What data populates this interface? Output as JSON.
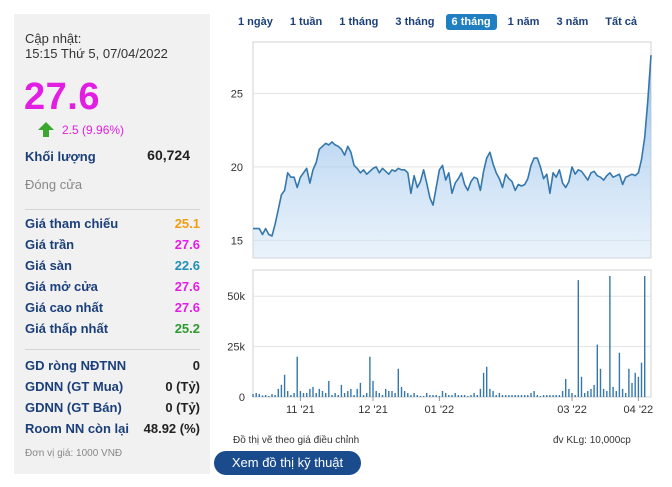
{
  "update": {
    "label": "Cập nhật:",
    "time": "15:15 Thứ 5, 07/04/2022"
  },
  "price": "27.6",
  "change": {
    "text": "2.5 (9.96%)",
    "direction": "up"
  },
  "volume": {
    "label": "Khối lượng",
    "value": "60,724"
  },
  "close_label": "Đóng cửa",
  "prices": [
    {
      "label": "Giá tham chiếu",
      "value": "25.1",
      "color": "#f39c12"
    },
    {
      "label": "Giá trần",
      "value": "27.6",
      "color": "#e31ee3"
    },
    {
      "label": "Giá sàn",
      "value": "22.6",
      "color": "#1f8fb5"
    },
    {
      "label": "Giá mở cửa",
      "value": "27.6",
      "color": "#e31ee3"
    },
    {
      "label": "Giá cao nhất",
      "value": "27.6",
      "color": "#e31ee3"
    },
    {
      "label": "Giá thấp nhất",
      "value": "25.2",
      "color": "#2e9a2e"
    }
  ],
  "foreign": [
    {
      "label": "GD ròng NĐTNN",
      "value": "0"
    },
    {
      "label": "GDNN (GT Mua)",
      "value": "0 (Tỷ)"
    },
    {
      "label": "GDNN (GT Bán)",
      "value": "0 (Tỷ)"
    },
    {
      "label": "Room NN còn lại",
      "value": "48.92 (%)"
    }
  ],
  "unit_note": "Đơn vị giá: 1000 VNĐ",
  "tabs": [
    {
      "label": "1 ngày",
      "active": false
    },
    {
      "label": "1 tuần",
      "active": false
    },
    {
      "label": "1 tháng",
      "active": false
    },
    {
      "label": "3 tháng",
      "active": false
    },
    {
      "label": "6 tháng",
      "active": true
    },
    {
      "label": "1 năm",
      "active": false
    },
    {
      "label": "3 năm",
      "active": false
    },
    {
      "label": "Tất cả",
      "active": false
    }
  ],
  "footer": {
    "left": "Đồ thị vẽ theo giá điều chỉnh",
    "right": "đv KLg: 10,000cp"
  },
  "tech_button": "Xem đồ thị kỹ thuật",
  "chart_data": [
    {
      "type": "area",
      "y_ticks": [
        15,
        20,
        25
      ],
      "ylim": [
        13.8,
        28.5
      ],
      "x_tick_labels": [
        "11 '21",
        "12 '21",
        "01 '22",
        "03 '22",
        "04 '22"
      ],
      "x_tick_index": [
        15,
        38,
        59,
        101,
        122
      ],
      "n": 127,
      "values": [
        15.8,
        15.8,
        15.8,
        15.4,
        15.8,
        15.4,
        15.3,
        16.1,
        17.1,
        18.1,
        18.4,
        19.6,
        19.3,
        19.3,
        18.6,
        19.3,
        19.6,
        19.9,
        18.9,
        19.8,
        20.3,
        21.2,
        21.4,
        21.6,
        21.5,
        21.7,
        21.5,
        21.4,
        21.2,
        20.8,
        21.4,
        21.0,
        20.1,
        19.9,
        19.6,
        19.8,
        19.5,
        19.7,
        19.9,
        20.0,
        19.6,
        19.9,
        19.7,
        19.5,
        19.8,
        19.7,
        19.9,
        19.8,
        19.8,
        19.6,
        18.2,
        19.4,
        18.6,
        19.0,
        19.8,
        18.9,
        17.9,
        17.4,
        18.6,
        19.8,
        20.1,
        19.1,
        19.6,
        18.2,
        18.9,
        19.2,
        19.6,
        18.8,
        18.4,
        19.0,
        19.3,
        19.2,
        18.4,
        19.7,
        20.6,
        21.0,
        20.2,
        19.6,
        19.2,
        18.6,
        19.5,
        19.2,
        19.0,
        18.4,
        18.8,
        18.7,
        18.8,
        19.2,
        20.1,
        20.6,
        20.6,
        20.0,
        19.2,
        19.5,
        18.2,
        19.6,
        19.3,
        19.8,
        18.9,
        18.6,
        19.0,
        20.0,
        19.5,
        19.8,
        19.7,
        19.4,
        19.1,
        19.6,
        19.7,
        19.4,
        19.3,
        19.1,
        19.4,
        19.6,
        19.3,
        19.4,
        19.5,
        18.8,
        19.3,
        19.4,
        19.5,
        19.4,
        19.6,
        20.5,
        22.0,
        24.5,
        27.6
      ]
    },
    {
      "type": "bar",
      "y_ticks": [
        0,
        25,
        50
      ],
      "y_tick_labels": [
        "0",
        "25k",
        "50k"
      ],
      "ylim": [
        0,
        63
      ],
      "n": 127,
      "values": [
        1.5,
        2,
        1.5,
        0.8,
        1,
        0.5,
        1.5,
        1,
        4,
        6,
        11,
        3,
        1,
        2,
        20,
        3,
        2,
        2,
        4,
        5,
        2,
        4,
        3,
        2,
        8,
        1,
        2,
        1,
        6,
        2,
        3,
        4,
        1,
        4,
        7,
        1,
        2,
        20,
        8,
        3,
        2,
        1,
        4,
        3,
        3,
        2,
        14,
        5,
        3,
        2,
        1,
        2,
        1,
        0.5,
        0.5,
        2,
        1,
        1,
        1,
        0.5,
        3,
        2,
        1,
        1,
        2,
        1,
        1,
        1,
        0.5,
        1,
        2,
        1,
        4,
        12,
        15,
        4,
        3,
        1,
        2,
        1,
        1,
        1,
        1,
        1,
        1,
        1,
        1,
        1,
        2,
        3,
        1,
        0.5,
        1,
        1,
        1,
        1,
        1,
        1,
        3,
        9,
        4,
        2,
        1,
        58,
        10,
        2,
        3,
        4,
        6,
        26,
        14,
        4,
        3,
        60,
        5,
        3,
        22,
        4,
        2,
        14,
        7,
        12,
        10,
        17,
        60
      ]
    }
  ]
}
